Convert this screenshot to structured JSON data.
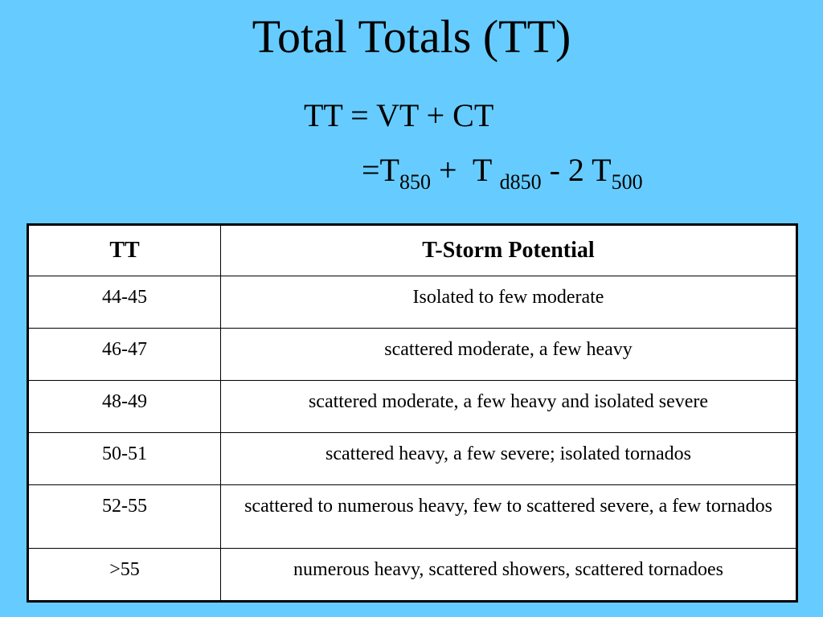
{
  "slide": {
    "title": "Total Totals (TT)",
    "formula_line1": "TT = VT + CT",
    "formula_line2": {
      "prefix": "=T",
      "t850_sub": "850",
      "plus": "+",
      "td_main": "T",
      "td_sub": "d850",
      "minus_part": "- 2 T",
      "t500_sub": "500"
    }
  },
  "table": {
    "headers": [
      "TT",
      "T-Storm Potential"
    ],
    "rows": [
      {
        "tt": "44-45",
        "potential": "Isolated to few moderate"
      },
      {
        "tt": "46-47",
        "potential": "scattered moderate, a few heavy"
      },
      {
        "tt": "48-49",
        "potential": "scattered moderate, a few heavy and isolated severe"
      },
      {
        "tt": "50-51",
        "potential": "scattered heavy, a few severe; isolated tornados"
      },
      {
        "tt": "52-55",
        "potential": "scattered to numerous heavy, few to scattered severe, a few tornados"
      },
      {
        "tt": ">55",
        "potential": "numerous heavy, scattered showers, scattered tornadoes"
      }
    ]
  },
  "colors": {
    "background": "#66ccff",
    "table_background": "#ffffff",
    "text": "#000000"
  }
}
